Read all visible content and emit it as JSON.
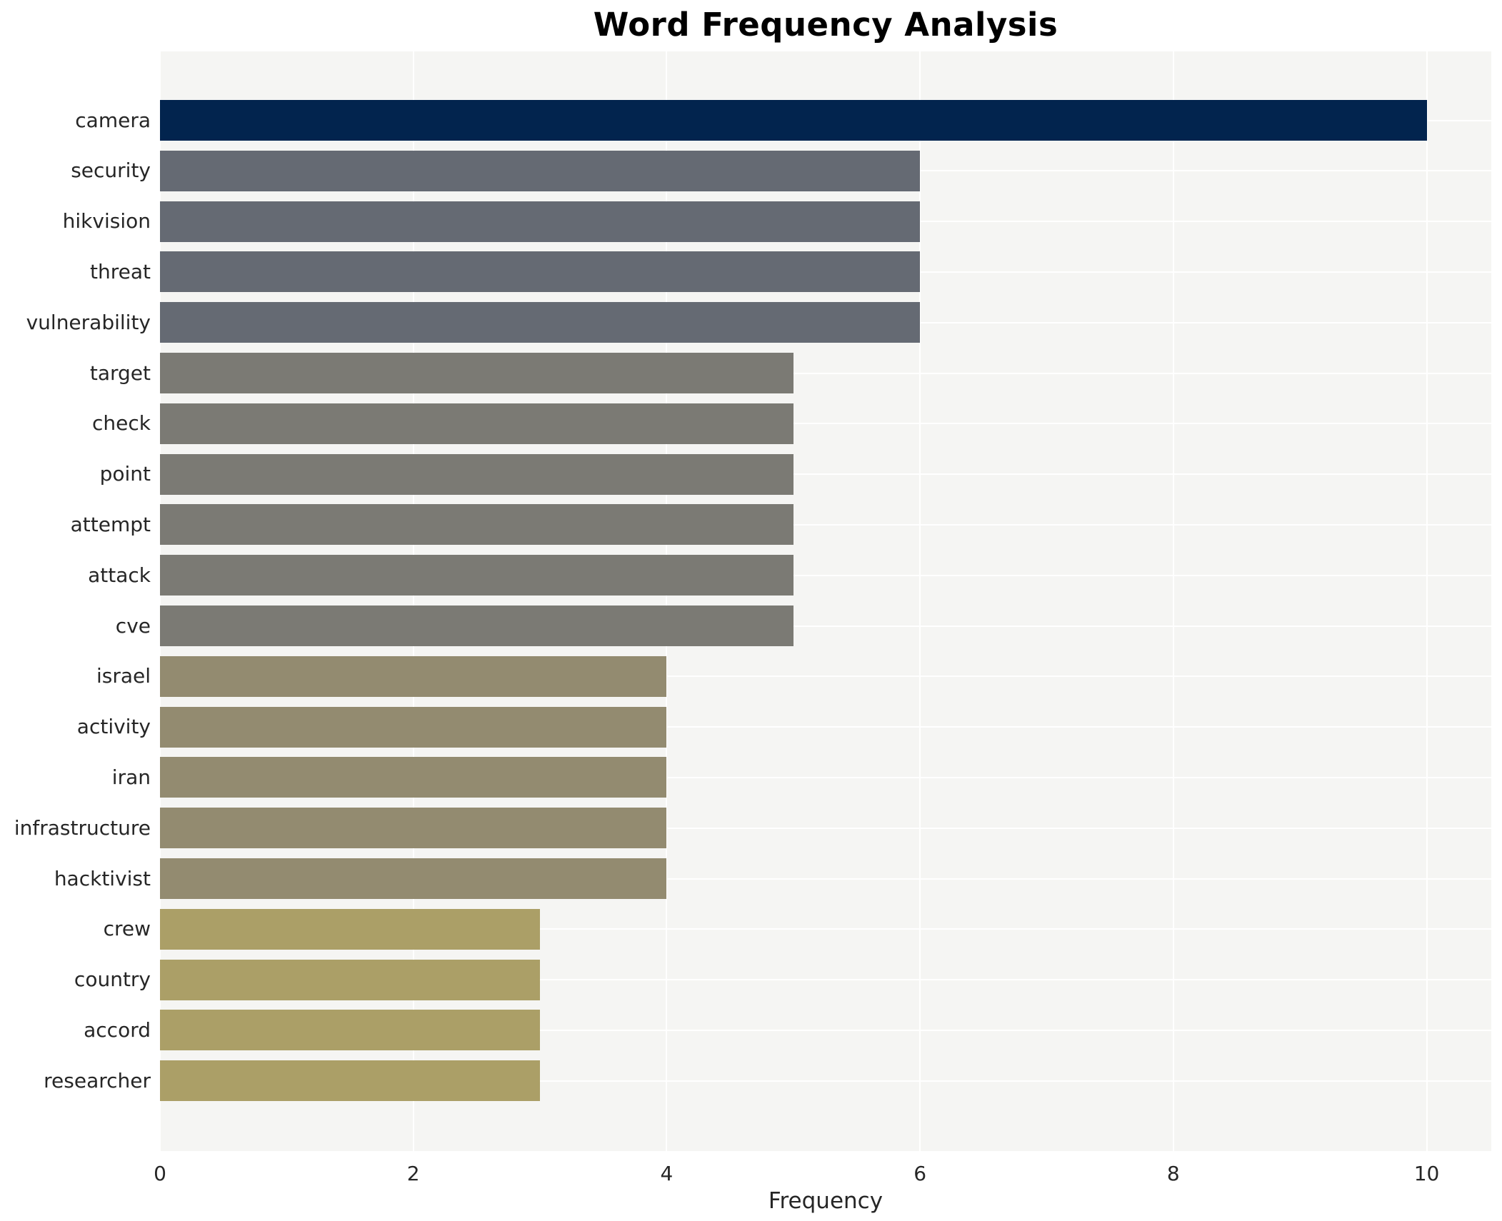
{
  "chart_data": {
    "type": "bar",
    "orientation": "horizontal",
    "title": "Word Frequency Analysis",
    "xlabel": "Frequency",
    "ylabel": "",
    "categories": [
      "camera",
      "security",
      "hikvision",
      "threat",
      "vulnerability",
      "target",
      "check",
      "point",
      "attempt",
      "attack",
      "cve",
      "israel",
      "activity",
      "iran",
      "infrastructure",
      "hacktivist",
      "crew",
      "country",
      "accord",
      "researcher"
    ],
    "values": [
      10,
      6,
      6,
      6,
      6,
      5,
      5,
      5,
      5,
      5,
      5,
      4,
      4,
      4,
      4,
      4,
      3,
      3,
      3,
      3
    ],
    "bar_colors": [
      "#02244e",
      "#656a73",
      "#656a73",
      "#656a73",
      "#656a73",
      "#7b7a74",
      "#7b7a74",
      "#7b7a74",
      "#7b7a74",
      "#7b7a74",
      "#7b7a74",
      "#938b70",
      "#938b70",
      "#938b70",
      "#938b70",
      "#938b70",
      "#ab9f67",
      "#ab9f67",
      "#ab9f67",
      "#ab9f67"
    ],
    "xticks": [
      0,
      2,
      4,
      6,
      8,
      10
    ],
    "xlim": [
      0,
      10.51
    ],
    "grid": true,
    "legend_position": "none",
    "plot_background": "#f5f5f3",
    "grid_color": "#ffffff",
    "text_color": "#262626"
  }
}
